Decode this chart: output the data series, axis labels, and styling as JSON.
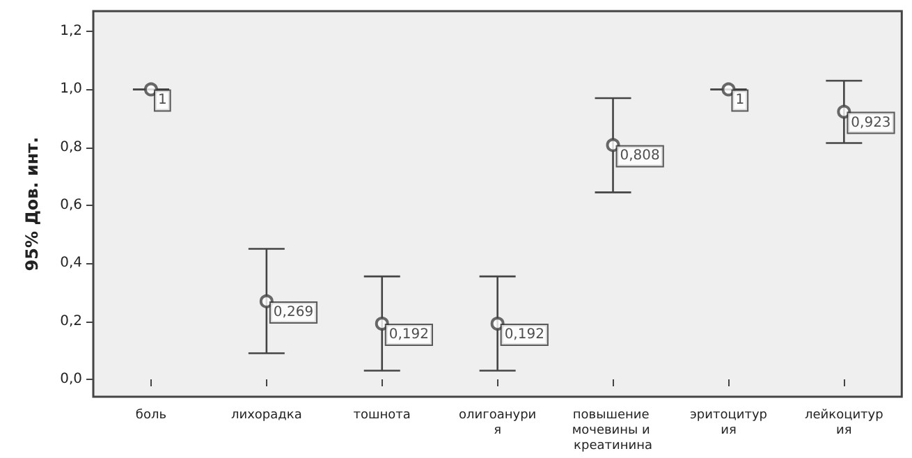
{
  "chart_data": {
    "type": "scatter",
    "ylabel": "95% Дов. инт.",
    "categories": [
      "боль",
      "лихорадка",
      "тошнота",
      "олигоанурия",
      "повышение мочевины и креатинина",
      "эритоцитурия",
      "лейкоцитурия"
    ],
    "values": [
      1,
      0.269,
      0.192,
      0.192,
      0.808,
      1,
      0.923
    ],
    "errors": [
      [
        1,
        1
      ],
      [
        0.09,
        0.45
      ],
      [
        0.03,
        0.355
      ],
      [
        0.03,
        0.355
      ],
      [
        0.645,
        0.97
      ],
      [
        1,
        1
      ],
      [
        0.815,
        1.03
      ]
    ],
    "value_labels": [
      "1",
      "0,269",
      "0,192",
      "0,192",
      "0,808",
      "1",
      "0,923"
    ],
    "color": "#444444",
    "marker": "circle",
    "grid": false,
    "ylim": [
      -0.06,
      1.27
    ],
    "yticks": [
      {
        "value": 0,
        "label": "0,0"
      },
      {
        "value": 0.2,
        "label": "0,2"
      },
      {
        "value": 0.4,
        "label": "0,4"
      },
      {
        "value": 0.6,
        "label": "0,6"
      },
      {
        "value": 0.8,
        "label": "0,8"
      },
      {
        "value": 1,
        "label": "1,0"
      },
      {
        "value": 1.2,
        "label": "1,2"
      }
    ]
  }
}
